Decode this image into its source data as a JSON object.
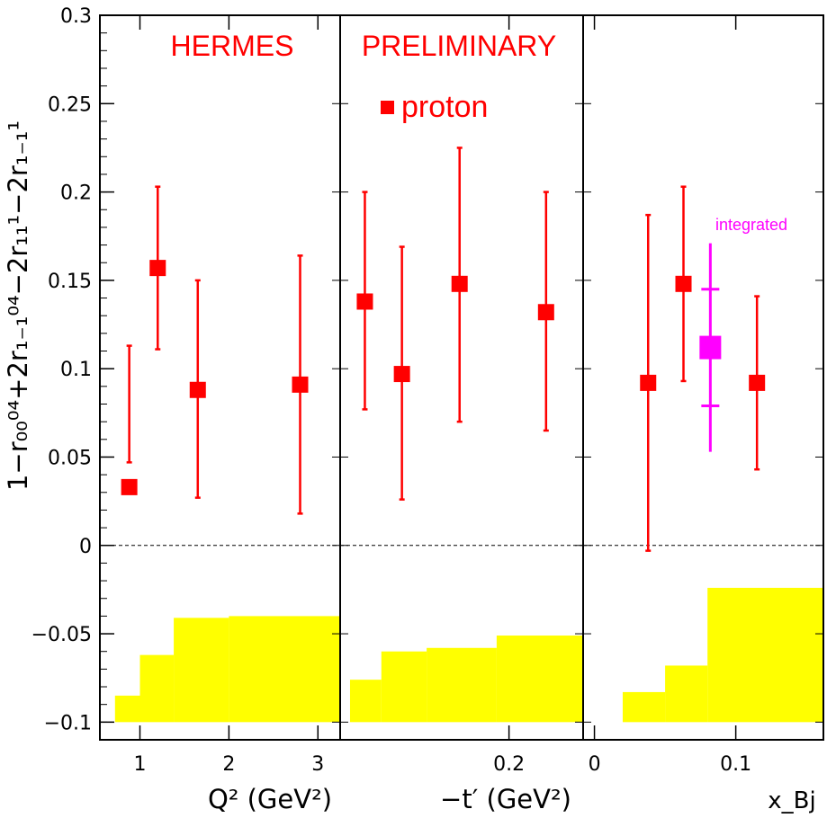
{
  "header": {
    "experiment": "HERMES",
    "status": "PRELIMINARY",
    "legend_label": "proton",
    "integrated_label": "integrated"
  },
  "colors": {
    "data": "#ff0000",
    "integrated": "#ff00ff",
    "systematic_band": "#ffff00"
  },
  "chart_data": {
    "ylabel": "1−r₀₀⁰⁴+2r₁₋₁⁰⁴−2r₁₁¹−2r₁₋₁¹",
    "ylim": [
      -0.11,
      0.3
    ],
    "yticks": [
      "0.3",
      "0.25",
      "0.2",
      "0.15",
      "0.1",
      "0.05",
      "0",
      "−0.05",
      "−0.1"
    ],
    "ytick_values": [
      0.3,
      0.25,
      0.2,
      0.15,
      0.1,
      0.05,
      0,
      -0.05,
      -0.1
    ],
    "panels": [
      {
        "type": "scatter",
        "xlabel": "Q² (GeV²)",
        "xlim": [
          0.55,
          3.25
        ],
        "xticks": [
          {
            "value": 1,
            "label": "1"
          },
          {
            "value": 2,
            "label": "2"
          },
          {
            "value": 3,
            "label": "3"
          }
        ],
        "points": [
          {
            "x": 0.88,
            "y": 0.033,
            "err_low": 0.047,
            "err_high": 0.113
          },
          {
            "x": 1.2,
            "y": 0.157,
            "err_low": 0.111,
            "err_high": 0.203
          },
          {
            "x": 1.65,
            "y": 0.088,
            "err_low": 0.027,
            "err_high": 0.15
          },
          {
            "x": 2.8,
            "y": 0.091,
            "err_low": 0.018,
            "err_high": 0.164
          }
        ],
        "systematic_band": [
          {
            "x0": 0.72,
            "x1": 1.0,
            "top": -0.085
          },
          {
            "x0": 1.0,
            "x1": 1.38,
            "top": -0.062
          },
          {
            "x0": 1.38,
            "x1": 2.0,
            "top": -0.041
          },
          {
            "x0": 2.0,
            "x1": 3.25,
            "top": -0.04
          }
        ],
        "band_bottom": -0.1
      },
      {
        "type": "scatter",
        "xlabel": "−t′ (GeV²)",
        "xlim": [
          -0.005,
          0.29
        ],
        "xticks": [
          {
            "value": 0.2,
            "label": "0.2"
          }
        ],
        "points": [
          {
            "x": 0.025,
            "y": 0.138,
            "err_low": 0.077,
            "err_high": 0.2
          },
          {
            "x": 0.07,
            "y": 0.097,
            "err_low": 0.026,
            "err_high": 0.169
          },
          {
            "x": 0.14,
            "y": 0.148,
            "err_low": 0.07,
            "err_high": 0.225
          },
          {
            "x": 0.245,
            "y": 0.132,
            "err_low": 0.065,
            "err_high": 0.2
          }
        ],
        "systematic_band": [
          {
            "x0": 0.007,
            "x1": 0.045,
            "top": -0.076
          },
          {
            "x0": 0.045,
            "x1": 0.1,
            "top": -0.06
          },
          {
            "x0": 0.1,
            "x1": 0.185,
            "top": -0.058
          },
          {
            "x0": 0.185,
            "x1": 0.29,
            "top": -0.051
          }
        ],
        "band_bottom": -0.1
      },
      {
        "type": "scatter",
        "xlabel": "x_Bj",
        "xlim": [
          -0.008,
          0.162
        ],
        "xticks": [
          {
            "value": 0,
            "label": "0"
          },
          {
            "value": 0.1,
            "label": "0.1"
          }
        ],
        "points": [
          {
            "x": 0.038,
            "y": 0.092,
            "err_low": -0.003,
            "err_high": 0.187
          },
          {
            "x": 0.063,
            "y": 0.148,
            "err_low": 0.093,
            "err_high": 0.203
          },
          {
            "x": 0.115,
            "y": 0.092,
            "err_low": 0.043,
            "err_high": 0.141
          }
        ],
        "integrated_point": {
          "x": 0.082,
          "y": 0.112,
          "stat_low": 0.079,
          "stat_high": 0.145,
          "tot_low": 0.053,
          "tot_high": 0.171
        },
        "systematic_band": [
          {
            "x0": 0.02,
            "x1": 0.05,
            "top": -0.083
          },
          {
            "x0": 0.05,
            "x1": 0.08,
            "top": -0.068
          },
          {
            "x0": 0.08,
            "x1": 0.162,
            "top": -0.024
          }
        ],
        "band_bottom": -0.1
      }
    ]
  }
}
